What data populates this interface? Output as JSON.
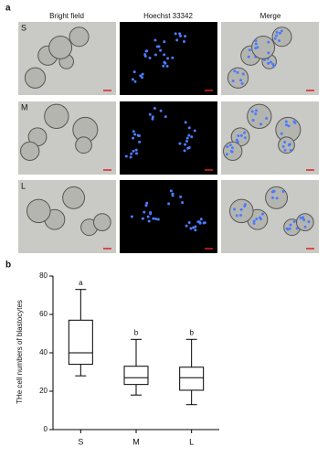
{
  "panel_a": {
    "label": "a",
    "columns": [
      "Bright field",
      "Hoechst 33342",
      "Merge"
    ],
    "rows": [
      "S",
      "M",
      "L"
    ]
  },
  "chart_data": {
    "type": "box",
    "label": "b",
    "y_label": "THe cell  numbers of blastocytes",
    "categories": [
      "S",
      "M",
      "L"
    ],
    "boxes": [
      {
        "min": 28,
        "q1": 34,
        "median": 40,
        "q3": 57,
        "max": 73
      },
      {
        "min": 18,
        "q1": 23.5,
        "median": 27,
        "q3": 33,
        "max": 47
      },
      {
        "min": 13,
        "q1": 20.5,
        "median": 27,
        "q3": 32.5,
        "max": 47
      }
    ],
    "annotations": [
      "a",
      "b",
      "b"
    ],
    "color": "#000000",
    "ylim": [
      0,
      80
    ],
    "yticks": [
      0,
      20,
      40,
      60,
      80
    ]
  }
}
